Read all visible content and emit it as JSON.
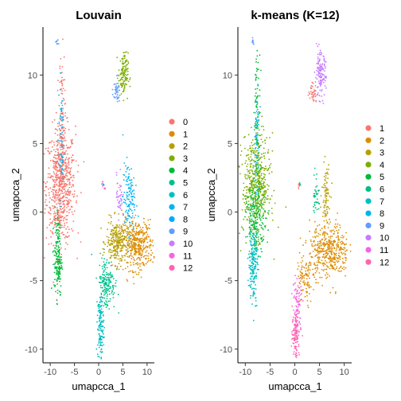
{
  "chart_data": [
    {
      "type": "scatter",
      "title": "Louvain",
      "xlabel": "umapcca_1",
      "ylabel": "umapcca_2",
      "xlim": [
        -11.5,
        11.5
      ],
      "ylim": [
        -11,
        13.5
      ],
      "xticks": [
        -10,
        -5,
        0,
        5,
        10
      ],
      "yticks": [
        -10,
        -5,
        0,
        5,
        10
      ],
      "xtick_labels": [
        "-10",
        "-5",
        "0",
        "5",
        "10"
      ],
      "ytick_labels": [
        "-10",
        "-5",
        "0",
        "5",
        "10"
      ],
      "grid": false,
      "legend_position": "right",
      "series": [
        {
          "name": "0",
          "color": "#F8766D",
          "clusters": [
            {
              "center": [
                -7.8,
                2.0
              ],
              "spread": [
                1.5,
                2.1
              ],
              "n": 700
            },
            {
              "center": [
                -7.6,
                7.0
              ],
              "spread": [
                0.3,
                2.4
              ],
              "n": 90
            }
          ]
        },
        {
          "name": "1",
          "color": "#DE8C00",
          "clusters": [
            {
              "center": [
                8.0,
                -2.4
              ],
              "spread": [
                1.6,
                0.9
              ],
              "n": 400
            }
          ]
        },
        {
          "name": "2",
          "color": "#B79F00",
          "clusters": [
            {
              "center": [
                3.8,
                -2.2
              ],
              "spread": [
                1.1,
                0.8
              ],
              "n": 260
            }
          ]
        },
        {
          "name": "3",
          "color": "#7CAE00",
          "clusters": [
            {
              "center": [
                5.1,
                10.0
              ],
              "spread": [
                0.5,
                0.8
              ],
              "n": 130
            }
          ]
        },
        {
          "name": "4",
          "color": "#00BA38",
          "clusters": [
            {
              "center": [
                -8.4,
                -3.6
              ],
              "spread": [
                0.4,
                1.3
              ],
              "n": 160
            },
            {
              "center": [
                -8.4,
                -1.2
              ],
              "spread": [
                0.3,
                0.8
              ],
              "n": 30
            }
          ]
        },
        {
          "name": "5",
          "color": "#00C08B",
          "clusters": [
            {
              "center": [
                1.6,
                -5.2
              ],
              "spread": [
                0.9,
                1.0
              ],
              "n": 180
            }
          ]
        },
        {
          "name": "6",
          "color": "#00BFC4",
          "clusters": [
            {
              "center": [
                0.4,
                -8.4
              ],
              "spread": [
                0.3,
                1.2
              ],
              "n": 130
            }
          ]
        },
        {
          "name": "7",
          "color": "#00B4F0",
          "clusters": [
            {
              "center": [
                6.2,
                1.0
              ],
              "spread": [
                0.6,
                1.3
              ],
              "n": 130
            },
            {
              "center": [
                -7.7,
                5.5
              ],
              "spread": [
                0.3,
                2.2
              ],
              "n": 60
            }
          ]
        },
        {
          "name": "8",
          "color": "#00A9FF",
          "clusters": [
            {
              "center": [
                1.0,
                2.0
              ],
              "spread": [
                0.1,
                0.1
              ],
              "n": 4
            }
          ]
        },
        {
          "name": "9",
          "color": "#619CFF",
          "clusters": [
            {
              "center": [
                3.6,
                8.7
              ],
              "spread": [
                0.4,
                0.35
              ],
              "n": 40
            },
            {
              "center": [
                -8.6,
                12.4
              ],
              "spread": [
                0.15,
                0.15
              ],
              "n": 10
            }
          ]
        },
        {
          "name": "10",
          "color": "#C77CFF",
          "clusters": [
            {
              "center": [
                4.3,
                1.2
              ],
              "spread": [
                0.3,
                0.8
              ],
              "n": 40
            }
          ]
        },
        {
          "name": "11",
          "color": "#F564E3",
          "clusters": [
            {
              "center": [
                0.8,
                2.0
              ],
              "spread": [
                0.1,
                0.15
              ],
              "n": 4
            }
          ]
        },
        {
          "name": "12",
          "color": "#FF64B0",
          "clusters": [
            {
              "center": [
                1.3,
                1.8
              ],
              "spread": [
                0.1,
                0.15
              ],
              "n": 3
            }
          ]
        }
      ]
    },
    {
      "type": "scatter",
      "title": "k-means (K=12)",
      "xlabel": "umapcca_1",
      "ylabel": "umapcca_2",
      "xlim": [
        -11.5,
        11.5
      ],
      "ylim": [
        -11,
        13.5
      ],
      "xticks": [
        -10,
        -5,
        0,
        5,
        10
      ],
      "yticks": [
        -10,
        -5,
        0,
        5,
        10
      ],
      "xtick_labels": [
        "-10",
        "-5",
        "0",
        "5",
        "10"
      ],
      "ytick_labels": [
        "-10",
        "-5",
        "0",
        "5",
        "10"
      ],
      "grid": false,
      "legend_position": "right",
      "series": [
        {
          "name": "1",
          "color": "#F8766D",
          "clusters": [
            {
              "center": [
                3.6,
                8.7
              ],
              "spread": [
                0.4,
                0.35
              ],
              "n": 40
            },
            {
              "center": [
                0.8,
                2.0
              ],
              "spread": [
                0.1,
                0.15
              ],
              "n": 4
            }
          ]
        },
        {
          "name": "2",
          "color": "#DE8C00",
          "clusters": [
            {
              "center": [
                7.0,
                -2.8
              ],
              "spread": [
                2.0,
                1.0
              ],
              "n": 450
            },
            {
              "center": [
                2.0,
                -5.0
              ],
              "spread": [
                0.8,
                1.0
              ],
              "n": 90
            }
          ]
        },
        {
          "name": "3",
          "color": "#B79F00",
          "clusters": [
            {
              "center": [
                6.3,
                1.5
              ],
              "spread": [
                0.4,
                1.0
              ],
              "n": 80
            }
          ]
        },
        {
          "name": "4",
          "color": "#7CAE00",
          "clusters": [
            {
              "center": [
                -7.8,
                2.0
              ],
              "spread": [
                1.4,
                1.8
              ],
              "n": 500
            }
          ]
        },
        {
          "name": "5",
          "color": "#00BA38",
          "clusters": [
            {
              "center": [
                -7.8,
                -0.5
              ],
              "spread": [
                1.0,
                1.2
              ],
              "n": 200
            },
            {
              "center": [
                -7.6,
                7.0
              ],
              "spread": [
                0.3,
                2.4
              ],
              "n": 90
            }
          ]
        },
        {
          "name": "6",
          "color": "#00BF7D",
          "clusters": [
            {
              "center": [
                4.3,
                1.3
              ],
              "spread": [
                0.3,
                0.8
              ],
              "n": 40
            },
            {
              "center": [
                1.0,
                2.0
              ],
              "spread": [
                0.1,
                0.1
              ],
              "n": 4
            }
          ]
        },
        {
          "name": "7",
          "color": "#00BFC4",
          "clusters": [
            {
              "center": [
                -8.4,
                -3.8
              ],
              "spread": [
                0.45,
                1.4
              ],
              "n": 180
            }
          ]
        },
        {
          "name": "8",
          "color": "#00B4F0",
          "clusters": [
            {
              "center": [
                -7.7,
                5.0
              ],
              "spread": [
                0.3,
                2.0
              ],
              "n": 50
            }
          ]
        },
        {
          "name": "9",
          "color": "#619CFF",
          "clusters": [
            {
              "center": [
                -8.6,
                12.4
              ],
              "spread": [
                0.15,
                0.15
              ],
              "n": 10
            }
          ]
        },
        {
          "name": "10",
          "color": "#C77CFF",
          "clusters": [
            {
              "center": [
                5.2,
                10.0
              ],
              "spread": [
                0.55,
                0.8
              ],
              "n": 140
            }
          ]
        },
        {
          "name": "11",
          "color": "#F564E3",
          "clusters": [
            {
              "center": [
                0.6,
                -6.8
              ],
              "spread": [
                0.5,
                1.1
              ],
              "n": 80
            }
          ]
        },
        {
          "name": "12",
          "color": "#FF64B0",
          "clusters": [
            {
              "center": [
                0.2,
                -8.8
              ],
              "spread": [
                0.35,
                0.9
              ],
              "n": 110
            }
          ]
        }
      ]
    }
  ]
}
